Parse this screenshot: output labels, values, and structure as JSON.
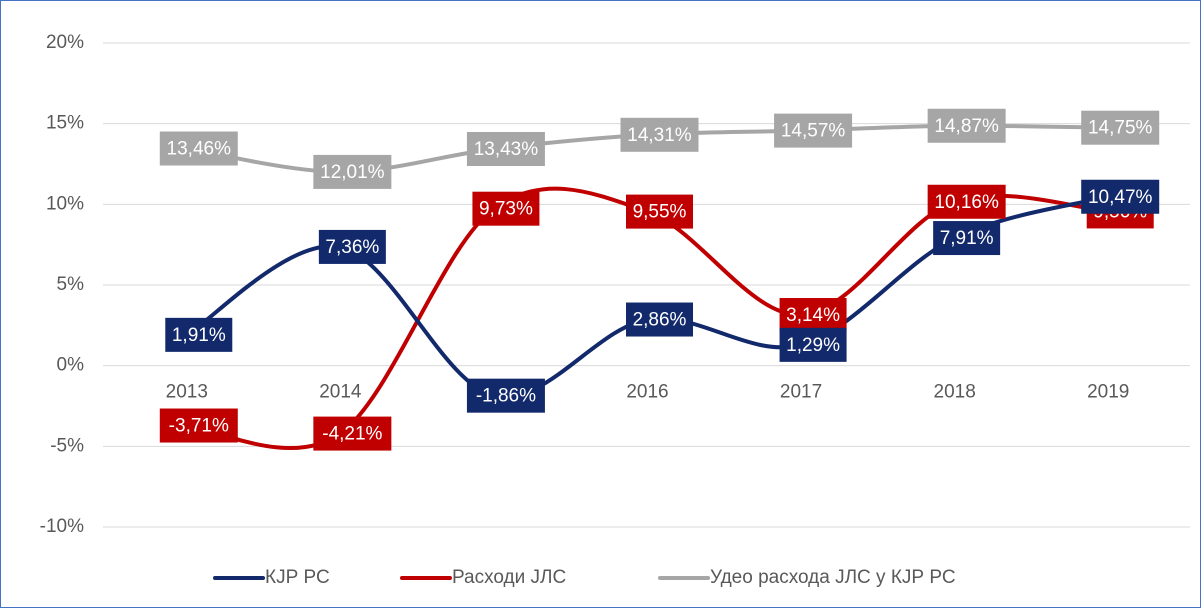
{
  "chart_data": {
    "type": "line",
    "categories": [
      "2013",
      "2014",
      "2015",
      "2016",
      "2017",
      "2018",
      "2019"
    ],
    "series": [
      {
        "name": "КЈР РС",
        "color": "#12296b",
        "values": [
          1.91,
          7.36,
          -1.86,
          2.86,
          1.29,
          7.91,
          10.47
        ],
        "value_labels": [
          "1,91%",
          "7,36%",
          "-1,86%",
          "2,86%",
          "1,29%",
          "7,91%",
          "10,47%"
        ]
      },
      {
        "name": "Расходи ЈЛС",
        "color": "#c00000",
        "values": [
          -3.71,
          -4.21,
          9.73,
          9.55,
          3.14,
          10.16,
          9.56
        ],
        "value_labels": [
          "-3,71%",
          "-4,21%",
          "9,73%",
          "9,55%",
          "3,14%",
          "10,16%",
          "9,56%"
        ]
      },
      {
        "name": "Удео расхода ЈЛС у КЈР РС",
        "color": "#a6a6a6",
        "values": [
          13.46,
          12.01,
          13.43,
          14.31,
          14.57,
          14.87,
          14.75
        ],
        "value_labels": [
          "13,46%",
          "12,01%",
          "13,43%",
          "14,31%",
          "14,57%",
          "14,87%",
          "14,75%"
        ]
      }
    ],
    "ylim": [
      -10,
      20
    ],
    "yticks": [
      {
        "value": -10,
        "label": "-10%"
      },
      {
        "value": -5,
        "label": "-5%"
      },
      {
        "value": 0,
        "label": "0%"
      },
      {
        "value": 5,
        "label": "5%"
      },
      {
        "value": 10,
        "label": "10%"
      },
      {
        "value": 15,
        "label": "15%"
      },
      {
        "value": 20,
        "label": "20%"
      }
    ],
    "grid": true,
    "legend": "bottom"
  }
}
